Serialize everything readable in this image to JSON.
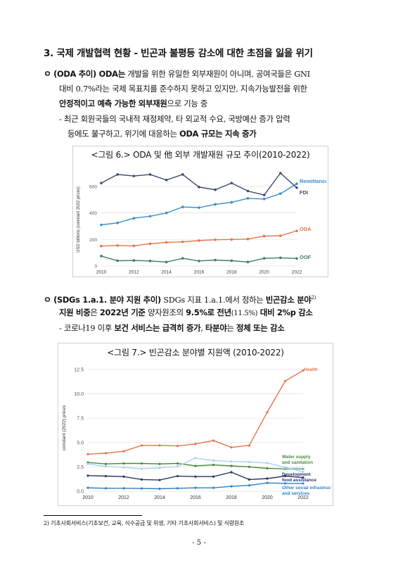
{
  "section_heading": "3. 국제 개발협력 현황 - 빈곤과 불평등 감소에 대한 초점을 잃을 위기",
  "para1": {
    "bullet": "ㅇ",
    "lead": "(ODA 추이) ODA는",
    "line1_rest": " 개발을 위한 유일한 외부재원이 아니며, 공여국들은 GNI",
    "line2": "대비 0.7%라는 국제 목표치를 준수하지 못하고 있지만, 지속가능발전을 위한",
    "line3_bold": "안정적이고 예측 가능한 외부재원",
    "line3_rest": "으로 기능 중"
  },
  "sub1": {
    "dash": "-",
    "line1": "최근 회원국들의 국내적 재정제약, 타 외교적 수요, 국방예산 증가 압력",
    "line2_pre": "등에도 불구하고, 위기에 대응하는 ",
    "line2_bold": "ODA 규모는 지속 증가"
  },
  "figure6": {
    "title": "<그림 6.> ODA 및 他 외부 개발재원 규모 추이(2010-2022)"
  },
  "para2": {
    "bullet": "ㅇ",
    "lead": "(SDGs 1.a.1. 분야 지원 추이)",
    "line1_mid": " SDGs 지표 1.a.1.에서 정하는 ",
    "line1_bold": "빈곤감소 분야",
    "footnote_ref": "2)",
    "line2_b1": "지원 비중",
    "line2_t1": "은 ",
    "line2_b2": "2022년 기준",
    "line2_t2": " 양자원조의 ",
    "line2_b3": "9.5%로 전년",
    "line2_t3": "(11.5%)",
    "line2_b4": " 대비 2%p 감소"
  },
  "sub2": {
    "dash": "-",
    "pre": "코로나19 이후 ",
    "b1": "보건 서비스는 급격히 증가",
    "mid": ", ",
    "b2": "타분야",
    "mid2": "는 ",
    "b3": "정체 또는 감소"
  },
  "figure7": {
    "title": "<그림 7.> 빈곤감소 분야별 지원액 (2010-2022)"
  },
  "footnote": "2) 기초사회서비스(기초보건, 교육, 식수공급 및 위생, 기타 기초사회서비스) 및 식량원조",
  "page_number": "- 5 -",
  "chart_data": [
    {
      "type": "line",
      "title": "<그림 6.> ODA 및 他 외부 개발재원 규모 추이(2010-2022)",
      "ylabel": "USD billions (constant 2022 prices)",
      "xlabel": "",
      "x": [
        2010,
        2011,
        2012,
        2013,
        2014,
        2015,
        2016,
        2017,
        2018,
        2019,
        2020,
        2021,
        2022
      ],
      "x_ticks": [
        "2010",
        "2012",
        "2014",
        "2016",
        "2018",
        "2020",
        "2022"
      ],
      "y_ticks": [
        "0",
        "200",
        "400",
        "600"
      ],
      "ylim": [
        0,
        700
      ],
      "grid": true,
      "legend": "right, at line ends",
      "series": [
        {
          "name": "Remittances",
          "color": "#3a8fc9",
          "values": [
            310,
            325,
            360,
            375,
            400,
            445,
            440,
            465,
            480,
            510,
            505,
            545,
            620
          ]
        },
        {
          "name": "FDI",
          "color": "#3d4a6b",
          "values": [
            625,
            690,
            678,
            690,
            648,
            690,
            595,
            575,
            625,
            565,
            535,
            700,
            590
          ]
        },
        {
          "name": "ODA",
          "color": "#e8724a",
          "values": [
            150,
            155,
            152,
            168,
            178,
            182,
            192,
            198,
            200,
            203,
            225,
            228,
            265
          ]
        },
        {
          "name": "OOF",
          "color": "#3f7d63",
          "values": [
            75,
            40,
            42,
            38,
            30,
            58,
            38,
            45,
            40,
            30,
            58,
            62,
            57
          ]
        }
      ]
    },
    {
      "type": "line",
      "title": "<그림 7.> 빈곤감소 분야별 지원액 (2010-2022)",
      "ylabel": "constant (2022) prices",
      "xlabel": "",
      "x": [
        2010,
        2011,
        2012,
        2013,
        2014,
        2015,
        2016,
        2017,
        2018,
        2019,
        2020,
        2021,
        2022
      ],
      "x_ticks": [
        "2010",
        "2012",
        "2014",
        "2016",
        "2018",
        "2020",
        "2022"
      ],
      "y_ticks": [
        "0.0",
        "2.5",
        "5.0",
        "7.5",
        "10.0",
        "12.5"
      ],
      "ylim": [
        0,
        13
      ],
      "grid": true,
      "legend": "right, at line ends",
      "series": [
        {
          "name": "Health",
          "color": "#e8724a",
          "values": [
            3.8,
            3.9,
            4.1,
            4.7,
            4.7,
            4.65,
            4.85,
            5.2,
            4.5,
            4.7,
            8.1,
            11.3,
            12.4
          ]
        },
        {
          "name": "Water supply and sanitation",
          "color": "#4a8a3c",
          "values": [
            2.95,
            2.8,
            2.85,
            2.85,
            2.8,
            2.85,
            2.6,
            2.7,
            2.6,
            2.5,
            2.35,
            2.3,
            2.3
          ]
        },
        {
          "name": "Education",
          "color": "#a9d3ea",
          "values": [
            2.8,
            2.55,
            2.45,
            2.3,
            2.4,
            2.55,
            3.4,
            3.15,
            3.05,
            3.0,
            2.9,
            2.45,
            2.0
          ]
        },
        {
          "name": "Development food assistance",
          "color": "#2b3566",
          "values": [
            1.6,
            1.55,
            1.5,
            1.2,
            1.15,
            1.55,
            1.5,
            1.5,
            1.95,
            1.2,
            1.3,
            1.55,
            1.4
          ]
        },
        {
          "name": "Other social infrastructure and services",
          "color": "#2f7fc1",
          "values": [
            0.35,
            0.3,
            0.3,
            0.28,
            0.25,
            0.3,
            0.35,
            0.35,
            0.5,
            0.6,
            0.85,
            0.8,
            0.8
          ]
        }
      ]
    }
  ]
}
